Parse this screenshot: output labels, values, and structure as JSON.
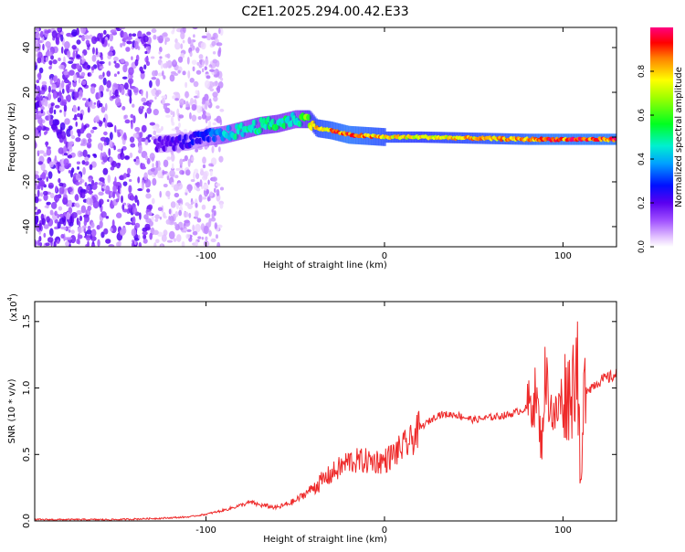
{
  "title": "C2E1.2025.294.00.42.E33",
  "chart_data": [
    {
      "type": "heatmap",
      "xlabel": "Height of straight line (km)",
      "ylabel": "Frequency (Hz)",
      "xlim": [
        -196,
        130
      ],
      "ylim": [
        -49,
        49
      ],
      "xticks": [
        "-100",
        "0",
        "100"
      ],
      "xtick_values": [
        -100,
        0,
        100
      ],
      "yticks": [
        "-40",
        "-20",
        "0",
        "20",
        "40"
      ],
      "ytick_values": [
        -40,
        -20,
        0,
        20,
        40
      ],
      "colorbar": {
        "label": "Normalized spectral amplitude",
        "range": [
          0,
          1
        ],
        "ticks": [
          "0.0",
          "0.2",
          "0.4",
          "0.6",
          "0.8"
        ],
        "tick_values": [
          0,
          0.2,
          0.4,
          0.6,
          0.8
        ]
      },
      "ridge": {
        "height_km": [
          -125,
          -110,
          -100,
          -90,
          -80,
          -70,
          -60,
          -50,
          -42,
          -38,
          -30,
          -20,
          -10,
          0,
          20,
          50,
          80,
          90,
          100,
          110,
          130
        ],
        "frequency_hz": [
          -3,
          -2,
          0,
          1,
          3,
          5,
          6,
          8,
          8,
          4,
          3,
          1,
          0.5,
          0,
          0,
          -0.5,
          -1,
          -1,
          -1,
          -1,
          -1
        ],
        "amplitude": [
          0.2,
          0.25,
          0.3,
          0.45,
          0.5,
          0.55,
          0.55,
          0.5,
          0.7,
          0.85,
          0.9,
          0.95,
          0.9,
          0.85,
          0.8,
          0.85,
          0.9,
          0.95,
          0.95,
          0.95,
          0.95
        ]
      }
    },
    {
      "type": "line",
      "xlabel": "Height of straight line (km)",
      "ylabel": "SNR (10 * v/v)",
      "scale_label": "(x10",
      "scale_exponent": "4",
      "scale_close": ")",
      "xlim": [
        -196,
        130
      ],
      "ylim": [
        0,
        1.65
      ],
      "xticks": [
        "-100",
        "0",
        "100"
      ],
      "xtick_values": [
        -100,
        0,
        100
      ],
      "yticks": [
        "0.0",
        "0.5",
        "1.0",
        "1.5"
      ],
      "ytick_values": [
        0,
        0.5,
        1.0,
        1.5
      ],
      "series": [
        {
          "name": "SNR",
          "color": "#ee2a2a",
          "x": [
            -196,
            -150,
            -125,
            -110,
            -100,
            -90,
            -80,
            -75,
            -70,
            -60,
            -50,
            -40,
            -30,
            -20,
            -10,
            0,
            10,
            15,
            20,
            25,
            30,
            40,
            50,
            60,
            70,
            80,
            85,
            88,
            90,
            95,
            100,
            105,
            108,
            110,
            112,
            115,
            120,
            130
          ],
          "values": [
            0.01,
            0.01,
            0.02,
            0.03,
            0.05,
            0.08,
            0.12,
            0.14,
            0.12,
            0.1,
            0.15,
            0.25,
            0.35,
            0.45,
            0.45,
            0.45,
            0.55,
            0.6,
            0.7,
            0.75,
            0.8,
            0.8,
            0.76,
            0.78,
            0.8,
            0.85,
            0.95,
            0.55,
            1.1,
            0.75,
            0.95,
            0.98,
            1.3,
            0.15,
            1.0,
            1.0,
            1.05,
            1.1
          ]
        }
      ]
    }
  ]
}
